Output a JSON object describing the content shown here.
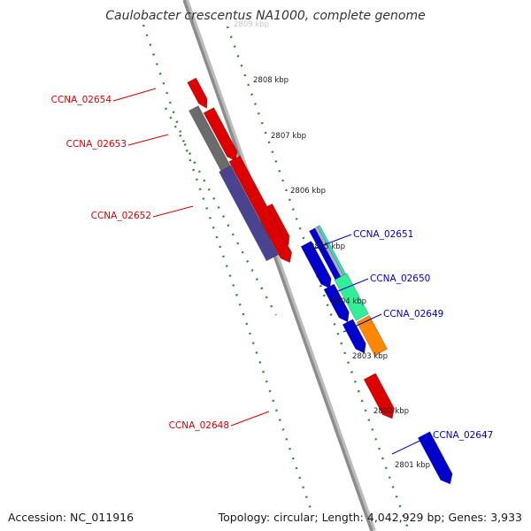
{
  "title": "Caulobacter crescentus NA1000, complete genome",
  "footer": {
    "accession": "Accession: NC_011916",
    "summary": "Topology: circular; Length: 4,042,929 bp; Genes: 3,933"
  },
  "colors": {
    "backbone": "#8c8c8c",
    "tick": "#2e8b2e",
    "label_forward": "#0000cc",
    "label_reverse": "#dd0000"
  },
  "scale_labels": [
    "2809 kbp",
    "2808 kbp",
    "2807 kbp",
    "2806 kbp",
    "2805 kbp",
    "2804 kbp",
    "2803 kbp",
    "2802 kbp",
    "2801 kbp"
  ],
  "genes": [
    {
      "color": "#dd0000",
      "label": ""
    },
    {
      "color": "#dd0000",
      "label": "CCNA_02654"
    },
    {
      "color": "#6b6b6b",
      "label": "CCNA_02653"
    },
    {
      "color": "#dd0000",
      "label": ""
    },
    {
      "color": "#4a4490",
      "label": "CCNA_02652"
    },
    {
      "color": "#dd0000",
      "label": ""
    },
    {
      "color": "#0000cc",
      "label": ""
    },
    {
      "color": "#0000cc",
      "label": ""
    },
    {
      "color": "#0000cc",
      "label": ""
    },
    {
      "color": "#0000cc",
      "label": ""
    },
    {
      "color": "#b0b0b0",
      "label": "CCNA_02651"
    },
    {
      "color": "#33ddcc",
      "label": ""
    },
    {
      "color": "#33ee99",
      "label": "CCNA_02650"
    },
    {
      "color": "#ff8800",
      "label": "CCNA_02649"
    },
    {
      "color": "#dd0000",
      "label": "CCNA_02648"
    },
    {
      "color": "#0000cc",
      "label": "CCNA_02647"
    }
  ]
}
